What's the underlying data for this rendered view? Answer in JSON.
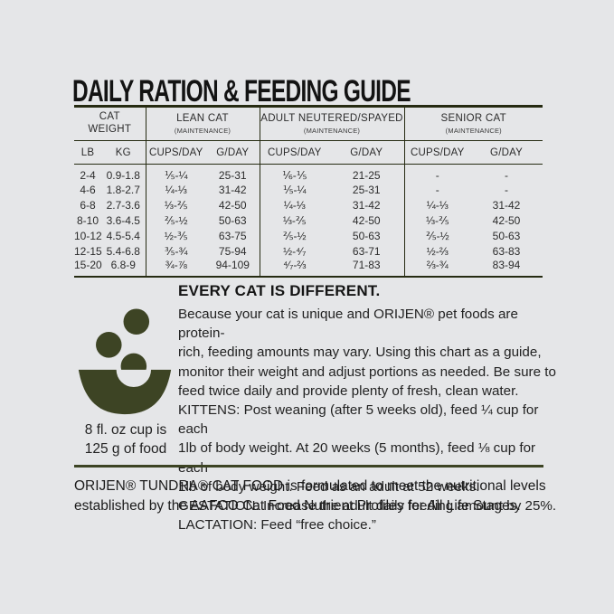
{
  "colors": {
    "background": "#e5e6e8",
    "ink": "#1d1d1d",
    "table_rule": "#262b12",
    "accent_olive": "#3d4424"
  },
  "title": "DAILY RATION & FEEDING GUIDE",
  "feeding_table": {
    "groups": [
      {
        "label": "CAT WEIGHT",
        "sublabel": "",
        "columns": [
          "LB",
          "KG"
        ]
      },
      {
        "label": "LEAN CAT",
        "sublabel": "(MAINTENANCE)",
        "columns": [
          "CUPS/DAY",
          "G/DAY"
        ]
      },
      {
        "label": "ADULT NEUTERED/SPAYED",
        "sublabel": "(MAINTENANCE)",
        "columns": [
          "CUPS/DAY",
          "G/DAY"
        ]
      },
      {
        "label": "SENIOR CAT",
        "sublabel": "(MAINTENANCE)",
        "columns": [
          "CUPS/DAY",
          "G/DAY"
        ]
      }
    ],
    "rows": [
      [
        "2-4",
        "0.9-1.8",
        "⅕-¼",
        "25-31",
        "⅙-⅕",
        "21-25",
        "-",
        "-"
      ],
      [
        "4-6",
        "1.8-2.7",
        "¼-⅓",
        "31-42",
        "⅕-¼",
        "25-31",
        "-",
        "-"
      ],
      [
        "6-8",
        "2.7-3.6",
        "⅓-⅖",
        "42-50",
        "¼-⅓",
        "31-42",
        "¼-⅓",
        "31-42"
      ],
      [
        "8-10",
        "3.6-4.5",
        "⅖-½",
        "50-63",
        "⅓-⅖",
        "42-50",
        "⅓-⅖",
        "42-50"
      ],
      [
        "10-12",
        "4.5-5.4",
        "½-⅗",
        "63-75",
        "⅖-½",
        "50-63",
        "⅖-½",
        "50-63"
      ],
      [
        "12-15",
        "5.4-6.8",
        "⅗-¾",
        "75-94",
        "½-⁴⁄₇",
        "63-71",
        "½-⅔",
        "63-83"
      ],
      [
        "15-20",
        "6.8-9",
        "¾-⅞",
        "94-109",
        "⁴⁄₇-⅔",
        "71-83",
        "⅔-¾",
        "83-94"
      ]
    ]
  },
  "info": {
    "heading": "EVERY CAT IS DIFFERENT.",
    "lines": [
      "Because your cat is unique and ORIJEN® pet foods are protein-",
      "rich, feeding amounts may vary. Using this chart as a guide,",
      "monitor their weight and adjust portions as needed. Be sure to",
      "feed twice daily and provide plenty of fresh, clean water.",
      "KITTENS: Post weaning (after 5 weeks old), feed ¼ cup for each",
      "1lb of body weight. At 20 weeks (5 months), feed ⅛ cup for each",
      "1lb of body weight. Feed as an adult at 52 weeks.",
      "GESTATION: Increase the adult daily feeding amount by 25%.",
      "LACTATION: Feed “free choice.”"
    ]
  },
  "cup_note": {
    "line1": "8 fl. oz cup is",
    "line2": "125 g of food",
    "icon": "food-bowl-with-kibble-icon"
  },
  "footer": {
    "lines": [
      "ORIJEN® TUNDRA® CAT FOOD is formulated to meet the nutritional levels",
      "established by the AAFCO Cat Food Nutrient Profiles for All Life Stages."
    ]
  }
}
